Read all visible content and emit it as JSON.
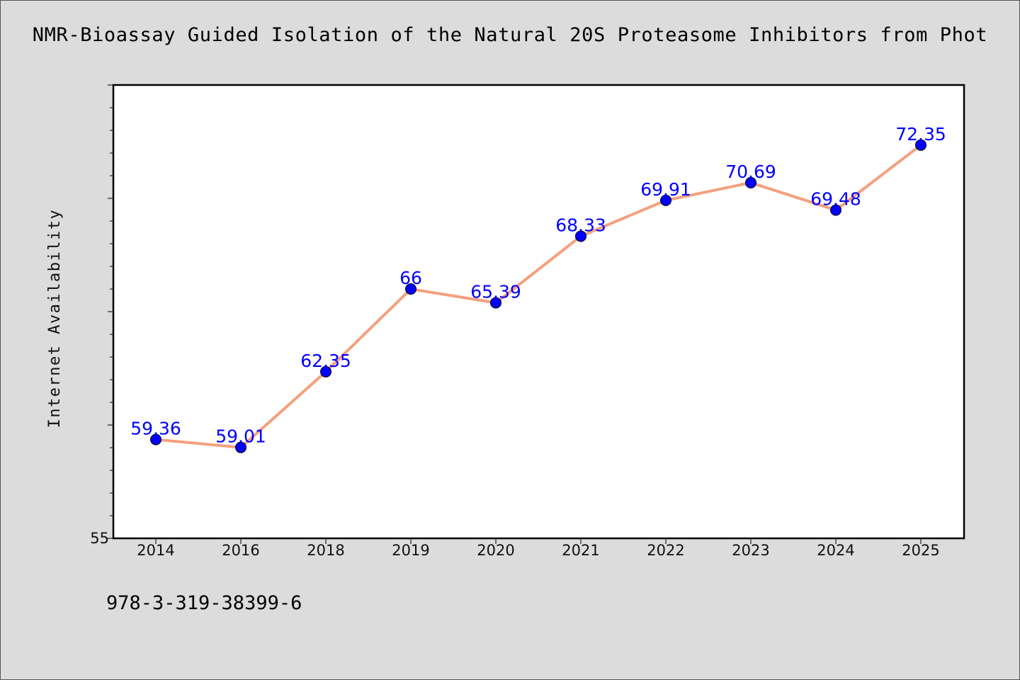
{
  "chart_data": {
    "type": "line",
    "title": "NMR-Bioassay Guided Isolation of the Natural 20S Proteasome Inhibitors from Phot",
    "ylabel": "Internet Availability",
    "xlabel": "",
    "categories": [
      "2014",
      "2016",
      "2018",
      "2019",
      "2020",
      "2021",
      "2022",
      "2023",
      "2024",
      "2025"
    ],
    "series": [
      {
        "values": [
          59.36,
          59.01,
          62.35,
          66,
          65.39,
          68.33,
          69.91,
          70.69,
          69.48,
          72.35
        ],
        "value_labels": [
          "59.36",
          "59.01",
          "62.35",
          "66",
          "65.39",
          "68.33",
          "69.91",
          "70.69",
          "69.48",
          "72.35"
        ],
        "line_color": "#f4a07e",
        "marker_color": "#0000ff"
      }
    ],
    "ylim": [
      55,
      75
    ],
    "ytick_labels": [
      "55"
    ],
    "grid": false,
    "legend": "none"
  },
  "footer": {
    "isbn": "978-3-319-38399-6"
  }
}
